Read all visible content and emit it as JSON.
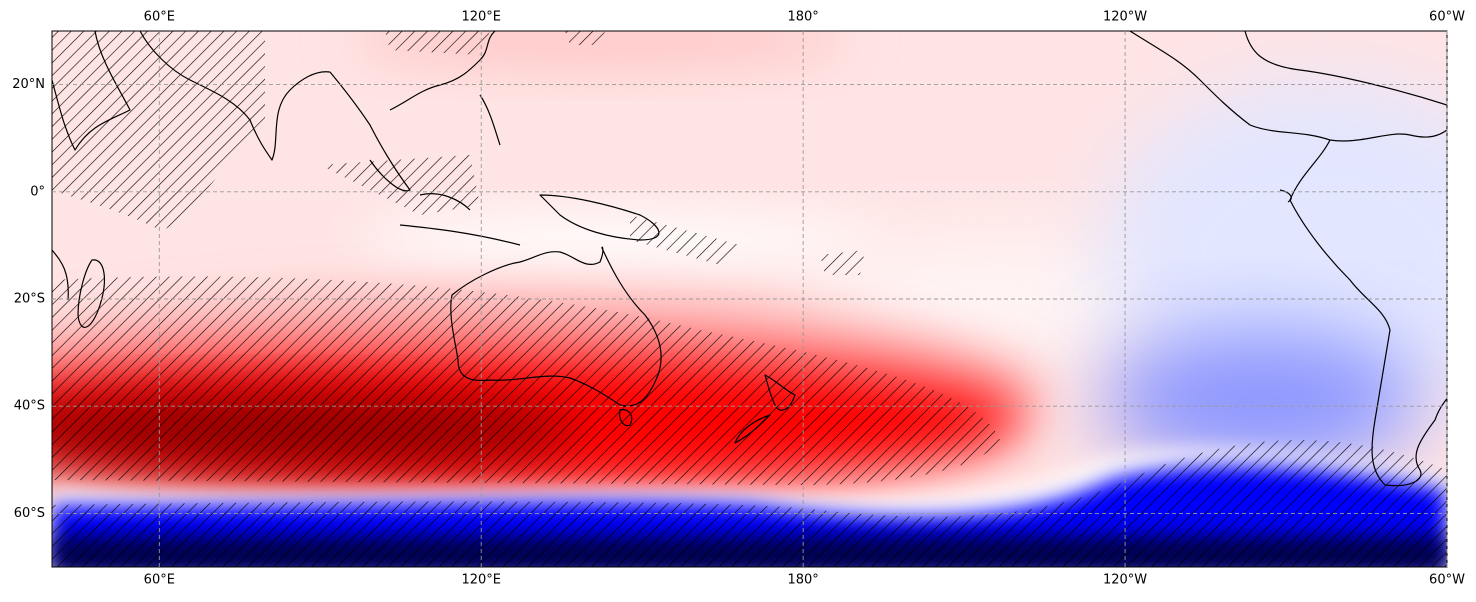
{
  "map": {
    "lonlim": [
      40,
      300
    ],
    "latlim": [
      -70,
      30
    ],
    "lon_ticks": [
      {
        "value": 60,
        "label": "60°E"
      },
      {
        "value": 120,
        "label": "120°E"
      },
      {
        "value": 180,
        "label": "180°"
      },
      {
        "value": 240,
        "label": "120°W"
      },
      {
        "value": 300,
        "label": "60°W"
      }
    ],
    "lat_ticks": [
      {
        "value": 20,
        "label": "20°N"
      },
      {
        "value": 0,
        "label": "0°"
      },
      {
        "value": -20,
        "label": "20°S"
      },
      {
        "value": -40,
        "label": "40°S"
      },
      {
        "value": -60,
        "label": "60°S"
      }
    ]
  }
}
